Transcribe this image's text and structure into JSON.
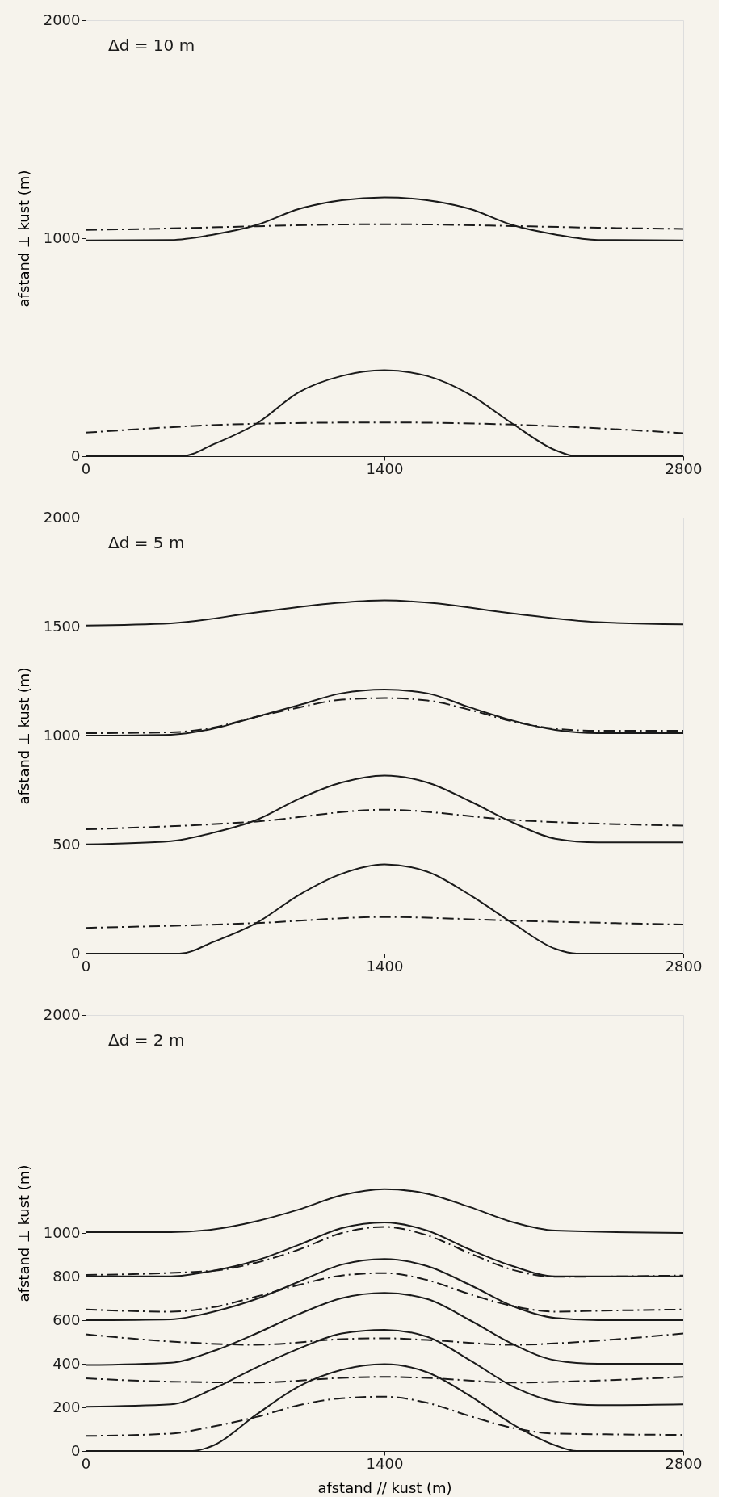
{
  "chart_data": [
    {
      "type": "line",
      "ylabel": "afstand ⊥ kust (m)",
      "annotations": [
        "Δd = 10 m"
      ],
      "xlim": [
        0,
        2800
      ],
      "xticks": [
        0,
        1400,
        2800
      ],
      "ylim": [
        0,
        2000
      ],
      "yticks": [
        0,
        1000,
        2000
      ],
      "grid": false,
      "legend": false,
      "series": [
        {
          "color": "#1a1a1a",
          "line_style": "solid",
          "x": [
            0,
            400,
            600,
            800,
            1000,
            1200,
            1400,
            1600,
            1800,
            2000,
            2200,
            2400,
            2800
          ],
          "values": [
            990,
            992,
            1017,
            1060,
            1134,
            1174,
            1187,
            1174,
            1134,
            1060,
            1017,
            992,
            990
          ]
        },
        {
          "color": "#1a1a1a",
          "line_style": "dashed",
          "x": [
            0,
            400,
            800,
            1200,
            1400,
            1600,
            2000,
            2400,
            2800
          ],
          "values": [
            1038,
            1045,
            1055,
            1063,
            1064,
            1063,
            1056,
            1048,
            1043
          ]
        },
        {
          "color": "#1a1a1a",
          "line_style": "solid",
          "x": [
            0,
            450,
            600,
            800,
            1000,
            1200,
            1400,
            1600,
            1800,
            2000,
            2200,
            2300,
            2800
          ],
          "values": [
            0,
            0,
            55,
            149,
            294,
            368,
            394,
            368,
            283,
            149,
            28,
            0,
            0
          ]
        },
        {
          "color": "#1a1a1a",
          "line_style": "dashed",
          "x": [
            0,
            800,
            1400,
            2000,
            2800
          ],
          "values": [
            108,
            149,
            155,
            145,
            106
          ]
        }
      ]
    },
    {
      "type": "line",
      "ylabel": "afstand ⊥ kust (m)",
      "annotations": [
        "Δd = 5 m"
      ],
      "xlim": [
        0,
        2800
      ],
      "xticks": [
        0,
        1400,
        2800
      ],
      "ylim": [
        0,
        2000
      ],
      "yticks": [
        0,
        500,
        1000,
        1500,
        2000
      ],
      "grid": false,
      "legend": false,
      "series": [
        {
          "color": "#1a1a1a",
          "line_style": "solid",
          "x": [
            0,
            400,
            800,
            1200,
            1400,
            1600,
            2000,
            2400,
            2800
          ],
          "values": [
            1505,
            1515,
            1565,
            1610,
            1620,
            1610,
            1560,
            1520,
            1510
          ]
        },
        {
          "color": "#1a1a1a",
          "line_style": "solid",
          "x": [
            0,
            400,
            600,
            800,
            1000,
            1200,
            1400,
            1600,
            1800,
            2000,
            2200,
            2400,
            2800
          ],
          "values": [
            1000,
            1004,
            1032,
            1086,
            1140,
            1194,
            1211,
            1194,
            1129,
            1069,
            1026,
            1011,
            1011
          ]
        },
        {
          "color": "#1a1a1a",
          "line_style": "dashed",
          "x": [
            0,
            400,
            600,
            800,
            1000,
            1200,
            1400,
            1600,
            1800,
            2000,
            2200,
            2400,
            2800
          ],
          "values": [
            1011,
            1015,
            1037,
            1086,
            1129,
            1165,
            1172,
            1161,
            1118,
            1065,
            1032,
            1022,
            1022
          ]
        },
        {
          "color": "#1a1a1a",
          "line_style": "solid",
          "x": [
            0,
            400,
            600,
            800,
            1000,
            1200,
            1400,
            1600,
            1800,
            2000,
            2200,
            2400,
            2800
          ],
          "values": [
            501,
            516,
            555,
            613,
            710,
            785,
            817,
            785,
            699,
            602,
            527,
            510,
            510
          ]
        },
        {
          "color": "#1a1a1a",
          "line_style": "dashed",
          "x": [
            0,
            800,
            1400,
            2000,
            2800
          ],
          "values": [
            570,
            606,
            660,
            613,
            587
          ]
        },
        {
          "color": "#1a1a1a",
          "line_style": "solid",
          "x": [
            0,
            440,
            600,
            800,
            1000,
            1200,
            1400,
            1600,
            1800,
            2000,
            2200,
            2300,
            2800
          ],
          "values": [
            0,
            0,
            54,
            140,
            269,
            366,
            409,
            376,
            269,
            140,
            22,
            0,
            0
          ]
        },
        {
          "color": "#1a1a1a",
          "line_style": "dashed",
          "x": [
            0,
            800,
            1400,
            2000,
            2800
          ],
          "values": [
            118,
            140,
            168,
            151,
            133
          ]
        }
      ]
    },
    {
      "type": "line",
      "xlabel": "afstand // kust (m)",
      "ylabel": "afstand ⊥ kust (m)",
      "annotations": [
        "Δd = 2 m"
      ],
      "xlim": [
        0,
        2800
      ],
      "xticks": [
        0,
        1400,
        2800
      ],
      "ylim": [
        0,
        2000
      ],
      "yticks": [
        0,
        200,
        400,
        600,
        800,
        1000,
        2000
      ],
      "grid": false,
      "legend": false,
      "series": [
        {
          "color": "#1a1a1a",
          "line_style": "solid",
          "x": [
            0,
            400,
            600,
            800,
            1000,
            1200,
            1400,
            1600,
            1800,
            2000,
            2200,
            2800
          ],
          "values": [
            1004,
            1004,
            1017,
            1054,
            1108,
            1173,
            1201,
            1180,
            1119,
            1050,
            1011,
            1000
          ]
        },
        {
          "color": "#1a1a1a",
          "line_style": "solid",
          "x": [
            0,
            400,
            600,
            800,
            1000,
            1200,
            1400,
            1600,
            1800,
            2000,
            2200,
            2800
          ],
          "values": [
            801,
            801,
            827,
            874,
            946,
            1022,
            1048,
            1011,
            924,
            848,
            801,
            801
          ]
        },
        {
          "color": "#1a1a1a",
          "line_style": "dashed",
          "x": [
            0,
            600,
            800,
            1000,
            1200,
            1400,
            1600,
            1800,
            2000,
            2200,
            2800
          ],
          "values": [
            807,
            827,
            864,
            924,
            1000,
            1028,
            989,
            907,
            831,
            799,
            805
          ]
        },
        {
          "color": "#1a1a1a",
          "line_style": "solid",
          "x": [
            0,
            400,
            600,
            800,
            1000,
            1200,
            1400,
            1600,
            1800,
            2000,
            2200,
            2400,
            2800
          ],
          "values": [
            600,
            604,
            639,
            697,
            777,
            855,
            881,
            848,
            762,
            665,
            610,
            600,
            600
          ]
        },
        {
          "color": "#1a1a1a",
          "line_style": "dashed",
          "x": [
            0,
            400,
            600,
            800,
            1000,
            1200,
            1400,
            1600,
            1800,
            2000,
            2200,
            2400,
            2800
          ],
          "values": [
            649,
            639,
            660,
            708,
            762,
            805,
            816,
            784,
            719,
            665,
            639,
            643,
            649
          ]
        },
        {
          "color": "#1a1a1a",
          "line_style": "solid",
          "x": [
            0,
            400,
            600,
            800,
            1000,
            1200,
            1400,
            1600,
            1800,
            2000,
            2200,
            2400,
            2800
          ],
          "values": [
            394,
            405,
            459,
            539,
            628,
            701,
            725,
            697,
            600,
            491,
            416,
            400,
            400
          ]
        },
        {
          "color": "#1a1a1a",
          "line_style": "dashed",
          "x": [
            0,
            400,
            800,
            1200,
            1400,
            1600,
            2000,
            2400,
            2800
          ],
          "values": [
            535,
            502,
            487,
            513,
            517,
            509,
            487,
            506,
            539
          ]
        },
        {
          "color": "#1a1a1a",
          "line_style": "solid",
          "x": [
            0,
            400,
            600,
            800,
            1000,
            1200,
            1400,
            1600,
            1800,
            2000,
            2200,
            2400,
            2800
          ],
          "values": [
            203,
            214,
            286,
            383,
            470,
            539,
            556,
            524,
            416,
            297,
            227,
            210,
            214
          ]
        },
        {
          "color": "#1a1a1a",
          "line_style": "dashed",
          "x": [
            0,
            400,
            800,
            1200,
            1400,
            1600,
            2000,
            2400,
            2800
          ],
          "values": [
            333,
            318,
            314,
            335,
            340,
            335,
            314,
            323,
            340
          ]
        },
        {
          "color": "#1a1a1a",
          "line_style": "solid",
          "x": [
            0,
            500,
            600,
            800,
            1000,
            1200,
            1400,
            1600,
            1800,
            2000,
            2200,
            2300,
            2800
          ],
          "values": [
            0,
            0,
            26,
            167,
            297,
            372,
            398,
            361,
            253,
            123,
            26,
            0,
            0
          ]
        },
        {
          "color": "#1a1a1a",
          "line_style": "dashed",
          "x": [
            0,
            400,
            600,
            800,
            1000,
            1200,
            1400,
            1600,
            1800,
            2000,
            2200,
            2800
          ],
          "values": [
            69,
            80,
            113,
            156,
            210,
            242,
            249,
            221,
            160,
            106,
            80,
            74
          ]
        }
      ]
    }
  ]
}
